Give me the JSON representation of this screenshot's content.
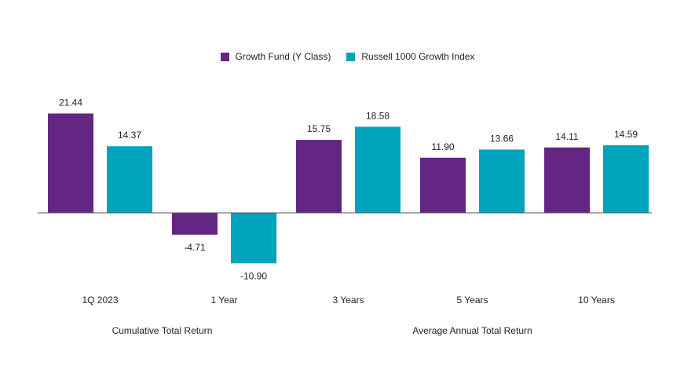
{
  "chart_data": {
    "type": "bar",
    "categories": [
      "1Q 2023",
      "1 Year",
      "3 Years",
      "5 Years",
      "10 Years"
    ],
    "series": [
      {
        "name": "Growth Fund (Y Class)",
        "color": "#642683",
        "values": [
          21.44,
          -4.71,
          15.75,
          11.9,
          14.11
        ],
        "labels": [
          "21.44",
          "-4.71",
          "15.75",
          "11.90",
          "14.11"
        ]
      },
      {
        "name": "Russell 1000 Growth Index",
        "color": "#00a3bc",
        "values": [
          14.37,
          -10.9,
          18.58,
          13.66,
          14.59
        ],
        "labels": [
          "14.37",
          "-10.90",
          "18.58",
          "13.66",
          "14.59"
        ]
      }
    ],
    "group_labels": [
      {
        "label": "Cumulative Total Return",
        "categories": [
          "1Q 2023",
          "1 Year"
        ]
      },
      {
        "label": "Average Annual Total Return",
        "categories": [
          "3 Years",
          "5 Years",
          "10 Years"
        ]
      }
    ],
    "title": "",
    "xlabel": "",
    "ylabel": "",
    "grid": false,
    "legend": "top-center"
  }
}
